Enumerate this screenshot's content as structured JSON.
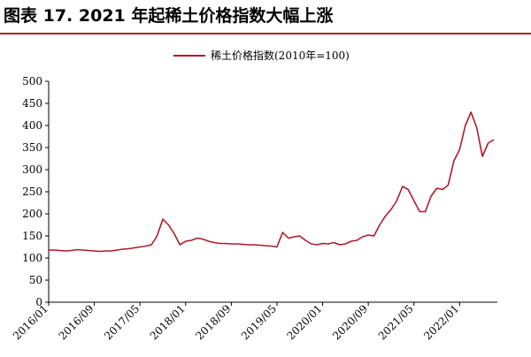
{
  "chart_data": {
    "type": "line",
    "title": "图表 17. 2021 年起稀土价格指数大幅上涨",
    "categories": [
      "2016/01",
      null,
      null,
      null,
      null,
      null,
      null,
      null,
      "2016/09",
      null,
      null,
      null,
      null,
      null,
      null,
      null,
      "2017/05",
      null,
      null,
      null,
      null,
      null,
      null,
      null,
      "2018/01",
      null,
      null,
      null,
      null,
      null,
      null,
      null,
      "2018/09",
      null,
      null,
      null,
      null,
      null,
      null,
      null,
      "2019/05",
      null,
      null,
      null,
      null,
      null,
      null,
      null,
      "2020/01",
      null,
      null,
      null,
      null,
      null,
      null,
      null,
      "2020/09",
      null,
      null,
      null,
      null,
      null,
      null,
      null,
      "2021/05",
      null,
      null,
      null,
      null,
      null,
      null,
      null,
      "2022/01",
      null,
      null,
      null,
      null,
      null,
      null
    ],
    "series": [
      {
        "name": "稀土价格指数(2010年=100)",
        "color": "#b0192b",
        "values": [
          118,
          118,
          117,
          116,
          117,
          119,
          118,
          117,
          116,
          115,
          116,
          116,
          118,
          120,
          121,
          123,
          125,
          127,
          130,
          150,
          188,
          175,
          155,
          130,
          138,
          140,
          145,
          143,
          138,
          135,
          133,
          133,
          132,
          132,
          131,
          130,
          130,
          129,
          128,
          127,
          125,
          158,
          145,
          148,
          150,
          140,
          132,
          130,
          133,
          132,
          135,
          130,
          132,
          138,
          140,
          148,
          152,
          150,
          175,
          195,
          210,
          230,
          262,
          255,
          230,
          205,
          205,
          240,
          258,
          255,
          265,
          320,
          345,
          400,
          430,
          395,
          330,
          360,
          368
        ]
      }
    ],
    "ylim": [
      0,
      500
    ],
    "yticks": [
      0,
      50,
      100,
      150,
      200,
      250,
      300,
      350,
      400,
      450,
      500
    ],
    "grid": false,
    "legend": "top"
  }
}
